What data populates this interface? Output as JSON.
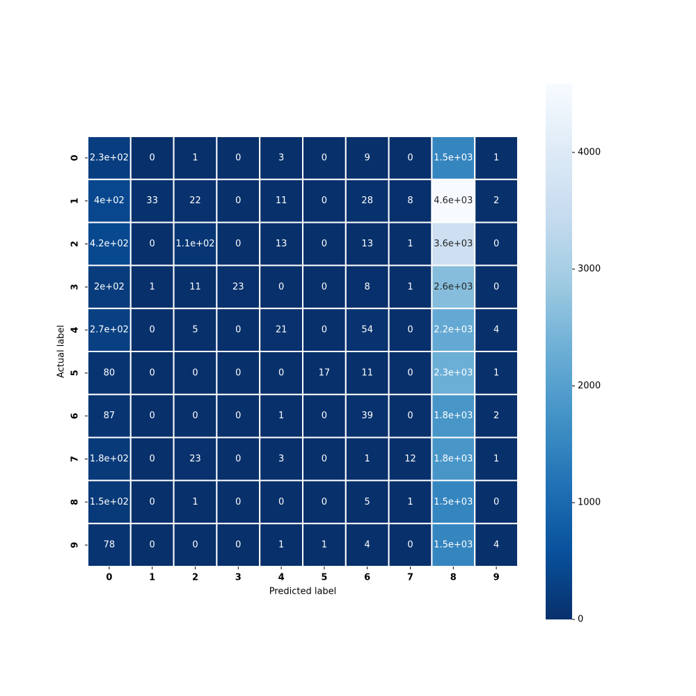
{
  "chart_data": {
    "type": "heatmap",
    "x_label": "Predicted label",
    "y_label": "Actual label",
    "x_categories": [
      "0",
      "1",
      "2",
      "3",
      "4",
      "5",
      "6",
      "7",
      "8",
      "9"
    ],
    "y_categories": [
      "0",
      "1",
      "2",
      "3",
      "4",
      "5",
      "6",
      "7",
      "8",
      "9"
    ],
    "values": [
      [
        230,
        0,
        1,
        0,
        3,
        0,
        9,
        0,
        1500,
        1
      ],
      [
        400,
        33,
        22,
        0,
        11,
        0,
        28,
        8,
        4590,
        2
      ],
      [
        420,
        0,
        110,
        0,
        13,
        0,
        13,
        1,
        3600,
        0
      ],
      [
        200,
        1,
        11,
        23,
        0,
        0,
        8,
        1,
        2600,
        0
      ],
      [
        270,
        0,
        5,
        0,
        21,
        0,
        54,
        0,
        2200,
        4
      ],
      [
        80,
        0,
        0,
        0,
        0,
        17,
        11,
        0,
        2300,
        1
      ],
      [
        87,
        0,
        0,
        0,
        1,
        0,
        39,
        0,
        1800,
        2
      ],
      [
        180,
        0,
        23,
        0,
        3,
        0,
        1,
        12,
        1800,
        1
      ],
      [
        150,
        0,
        1,
        0,
        0,
        0,
        5,
        1,
        1500,
        0
      ],
      [
        78,
        0,
        0,
        0,
        1,
        1,
        4,
        0,
        1500,
        4
      ]
    ],
    "value_labels": [
      [
        "2.3e+02",
        "0",
        "1",
        "0",
        "3",
        "0",
        "9",
        "0",
        "1.5e+03",
        "1"
      ],
      [
        "4e+02",
        "33",
        "22",
        "0",
        "11",
        "0",
        "28",
        "8",
        "4.6e+03",
        "2"
      ],
      [
        "4.2e+02",
        "0",
        "1.1e+02",
        "0",
        "13",
        "0",
        "13",
        "1",
        "3.6e+03",
        "0"
      ],
      [
        "2e+02",
        "1",
        "11",
        "23",
        "0",
        "0",
        "8",
        "1",
        "2.6e+03",
        "0"
      ],
      [
        "2.7e+02",
        "0",
        "5",
        "0",
        "21",
        "0",
        "54",
        "0",
        "2.2e+03",
        "4"
      ],
      [
        "80",
        "0",
        "0",
        "0",
        "0",
        "17",
        "11",
        "0",
        "2.3e+03",
        "1"
      ],
      [
        "87",
        "0",
        "0",
        "0",
        "1",
        "0",
        "39",
        "0",
        "1.8e+03",
        "2"
      ],
      [
        "1.8e+02",
        "0",
        "23",
        "0",
        "3",
        "0",
        "1",
        "12",
        "1.8e+03",
        "1"
      ],
      [
        "1.5e+02",
        "0",
        "1",
        "0",
        "0",
        "0",
        "5",
        "1",
        "1.5e+03",
        "0"
      ],
      [
        "78",
        "0",
        "0",
        "0",
        "1",
        "1",
        "4",
        "0",
        "1.5e+03",
        "4"
      ]
    ],
    "colormap": "Blues_r",
    "clim": [
      0,
      4590
    ],
    "cticks": [
      0,
      1000,
      2000,
      3000,
      4000
    ]
  }
}
